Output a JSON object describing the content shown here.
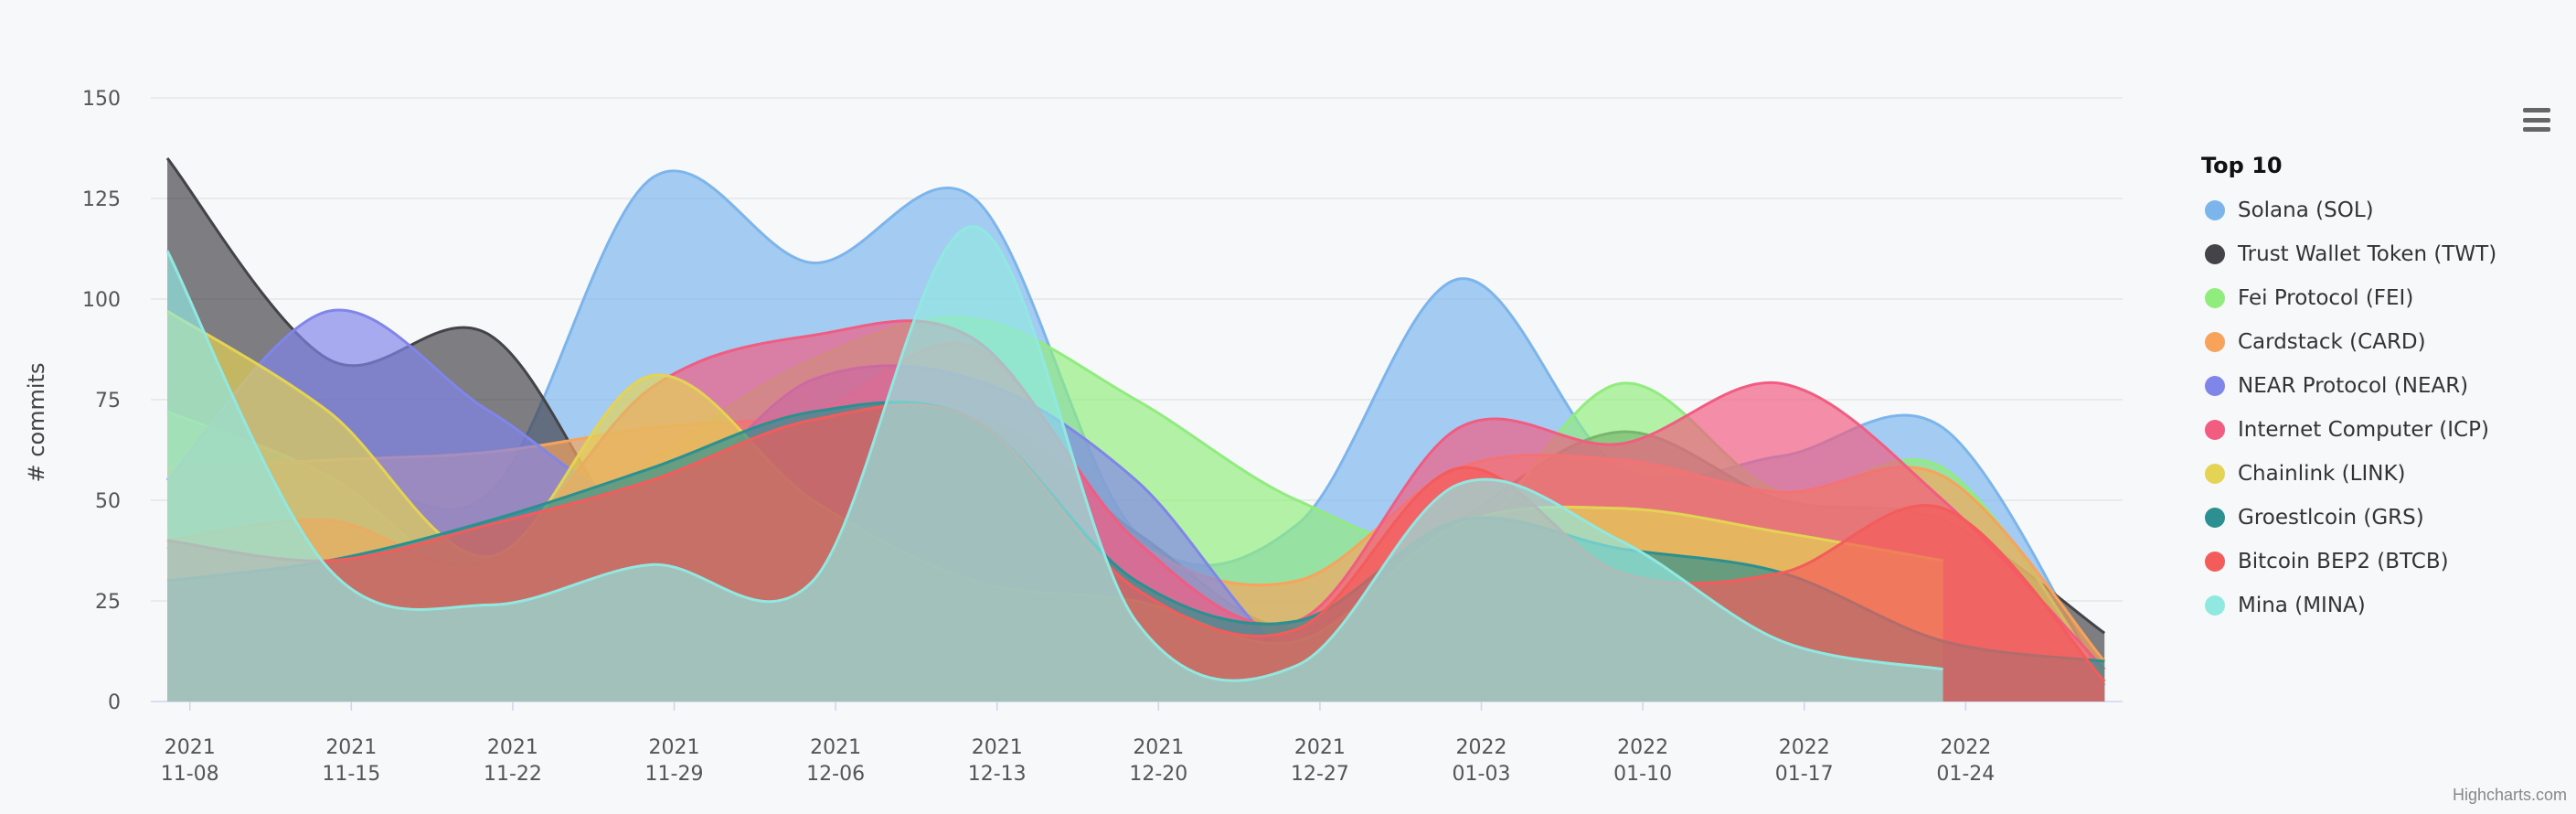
{
  "chart_data": {
    "type": "area",
    "title": "",
    "ylabel": "# commits",
    "xlabel": "",
    "ylim": [
      0,
      150
    ],
    "yticks": [
      0,
      25,
      50,
      75,
      100,
      125,
      150
    ],
    "x_tick_labels": [
      [
        "2021",
        "11-08"
      ],
      [
        "2021",
        "11-15"
      ],
      [
        "2021",
        "11-22"
      ],
      [
        "2021",
        "11-29"
      ],
      [
        "2021",
        "12-06"
      ],
      [
        "2021",
        "12-13"
      ],
      [
        "2021",
        "12-20"
      ],
      [
        "2021",
        "12-27"
      ],
      [
        "2022",
        "01-03"
      ],
      [
        "2022",
        "01-10"
      ],
      [
        "2022",
        "01-17"
      ],
      [
        "2022",
        "01-24"
      ]
    ],
    "x_note": "weekly data points; x index 0 = 2021-11-07, index 12 = 2022-01-30",
    "legend_title": "Top 10",
    "series": [
      {
        "name": "Solana (SOL)",
        "color": "#7cb5ec",
        "x": [
          0,
          1,
          2,
          3,
          4,
          5,
          6,
          7,
          8,
          9,
          10,
          11,
          12
        ],
        "values": [
          38,
          56,
          52,
          130,
          109,
          125,
          42,
          44,
          105,
          58,
          61,
          68,
          4
        ]
      },
      {
        "name": "Trust Wallet Token (TWT)",
        "color": "#434348",
        "x": [
          0,
          1,
          2,
          3,
          4,
          5,
          6,
          7,
          8,
          9,
          10,
          11,
          12
        ],
        "values": [
          135,
          85,
          91,
          35,
          30,
          70,
          42,
          18,
          45,
          67,
          50,
          45,
          17
        ]
      },
      {
        "name": "Fei Protocol (FEI)",
        "color": "#90ed7d",
        "x": [
          0,
          1,
          2,
          3,
          4,
          5,
          6,
          7,
          8,
          9,
          10,
          11,
          12
        ],
        "values": [
          72,
          56,
          30,
          60,
          85,
          95,
          75,
          50,
          40,
          79,
          52,
          58,
          5
        ]
      },
      {
        "name": "Cardstack (CARD)",
        "color": "#f7a35c",
        "x": [
          0,
          1,
          2,
          3,
          4,
          5,
          6,
          7,
          8,
          9,
          10,
          11,
          12
        ],
        "values": [
          58,
          60,
          62,
          68,
          72,
          88,
          40,
          30,
          58,
          60,
          52,
          56,
          10
        ]
      },
      {
        "name": "NEAR Protocol (NEAR)",
        "color": "#8085e9",
        "x": [
          0,
          1,
          2,
          3,
          4,
          5,
          6,
          7,
          8
        ],
        "values": [
          55,
          97,
          72,
          50,
          80,
          80,
          55,
          10,
          8
        ]
      },
      {
        "name": "Internet Computer (ICP)",
        "color": "#f15c80",
        "x": [
          0,
          1,
          2,
          3,
          4,
          5,
          6,
          7,
          8,
          9,
          10,
          11,
          12
        ],
        "values": [
          40,
          45,
          35,
          78,
          91,
          90,
          40,
          20,
          68,
          64,
          79,
          50,
          8
        ]
      },
      {
        "name": "Chainlink (LINK)",
        "color": "#e4d354",
        "x": [
          0,
          1,
          2,
          3,
          4,
          5,
          6,
          7,
          8,
          9,
          10,
          11
        ],
        "values": [
          97,
          72,
          36,
          81,
          50,
          30,
          25,
          15,
          44,
          48,
          42,
          35
        ]
      },
      {
        "name": "Groestlcoin (GRS)",
        "color": "#2b908f",
        "x": [
          0,
          1,
          2,
          3,
          4,
          5,
          6,
          7,
          8,
          9,
          10,
          11,
          12
        ],
        "values": [
          30,
          35,
          45,
          58,
          72,
          70,
          30,
          20,
          45,
          38,
          32,
          15,
          10
        ]
      },
      {
        "name": "Bitcoin BEP2 (BTCB)",
        "color": "#f45b5b",
        "x": [
          0,
          1,
          2,
          3,
          4,
          5,
          6,
          7,
          8,
          9,
          10,
          11,
          12
        ],
        "values": [
          40,
          35,
          44,
          55,
          70,
          70,
          28,
          18,
          58,
          32,
          32,
          48,
          5
        ]
      },
      {
        "name": "Mina (MINA)",
        "color": "#91e8e1",
        "x": [
          0,
          1,
          2,
          3,
          4,
          5,
          6,
          7,
          8,
          9,
          10,
          11
        ],
        "values": [
          112,
          33,
          24,
          34,
          30,
          118,
          20,
          9,
          54,
          40,
          15,
          8
        ]
      }
    ]
  },
  "menu": {
    "icon": "hamburger-menu-icon"
  },
  "credits": "Highcharts.com"
}
